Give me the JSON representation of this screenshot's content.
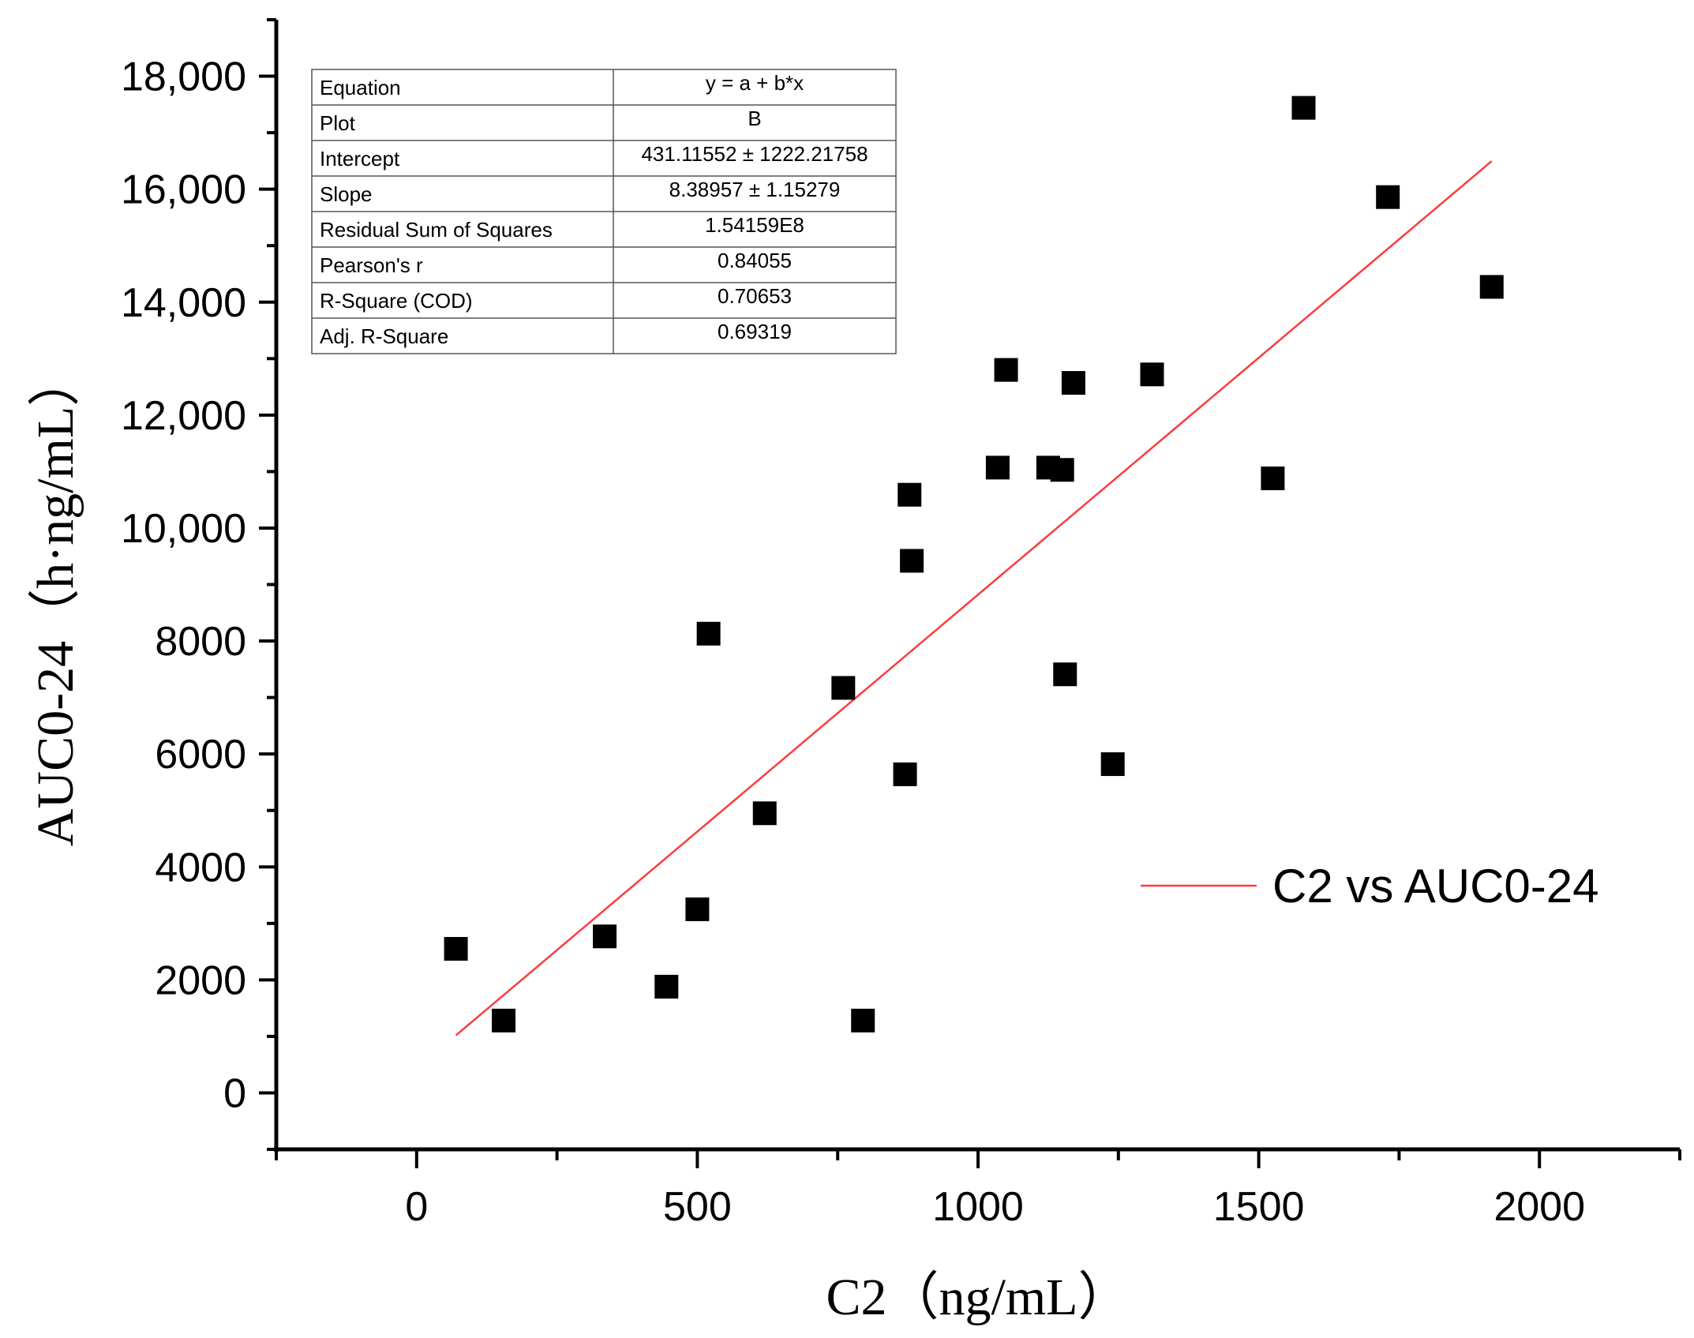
{
  "chart_data": {
    "type": "scatter",
    "title": "",
    "xlabel": "C2（ng/mL）",
    "ylabel": "AUC0-24（h·ng/mL）",
    "xlim": [
      -250,
      2250
    ],
    "ylim": [
      -1000,
      19000
    ],
    "x_ticks": [
      0,
      500,
      1000,
      1500,
      2000
    ],
    "x_tick_labels": [
      "0",
      "500",
      "1000",
      "1500",
      "2000"
    ],
    "y_ticks": [
      0,
      2000,
      4000,
      6000,
      8000,
      10000,
      12000,
      14000,
      16000,
      18000
    ],
    "y_tick_labels": [
      "0",
      "2000",
      "4000",
      "6000",
      "8000",
      "10,000",
      "12,000",
      "14,000",
      "16,000",
      "18,000"
    ],
    "grid": false,
    "series": [
      {
        "name": "AUC0-24",
        "marker": "square",
        "color": "#000000",
        "points": [
          [
            70,
            2550
          ],
          [
            155,
            1280
          ],
          [
            335,
            2770
          ],
          [
            445,
            1880
          ],
          [
            500,
            3250
          ],
          [
            520,
            8130
          ],
          [
            620,
            4950
          ],
          [
            760,
            7170
          ],
          [
            795,
            1280
          ],
          [
            870,
            5640
          ],
          [
            878,
            10590
          ],
          [
            882,
            9420
          ],
          [
            1035,
            11070
          ],
          [
            1050,
            12800
          ],
          [
            1125,
            11070
          ],
          [
            1150,
            11030
          ],
          [
            1155,
            7410
          ],
          [
            1170,
            12570
          ],
          [
            1240,
            5820
          ],
          [
            1310,
            12720
          ],
          [
            1525,
            10880
          ],
          [
            1580,
            17440
          ],
          [
            1730,
            15860
          ],
          [
            1915,
            14270
          ]
        ]
      },
      {
        "name": "C2 vs AUC0-24",
        "type": "line",
        "color": "#ff3b3b",
        "intercept": 431.11552,
        "slope": 8.38957,
        "x_range": [
          70,
          1915
        ]
      }
    ],
    "legend": {
      "position": "right",
      "label": "C2 vs AUC0-24"
    },
    "stats_table": {
      "position": "top-left",
      "rows": [
        {
          "label": "Equation",
          "value": "y = a + b*x"
        },
        {
          "label": "Plot",
          "value": "B"
        },
        {
          "label": "Intercept",
          "value": "431.11552 ± 1222.21758"
        },
        {
          "label": "Slope",
          "value": "8.38957 ± 1.15279"
        },
        {
          "label": "Residual Sum of Squares",
          "value": "1.54159E8"
        },
        {
          "label": "Pearson's r",
          "value": "0.84055"
        },
        {
          "label": "R-Square (COD)",
          "value": "0.70653"
        },
        {
          "label": "Adj. R-Square",
          "value": "0.69319"
        }
      ]
    }
  }
}
